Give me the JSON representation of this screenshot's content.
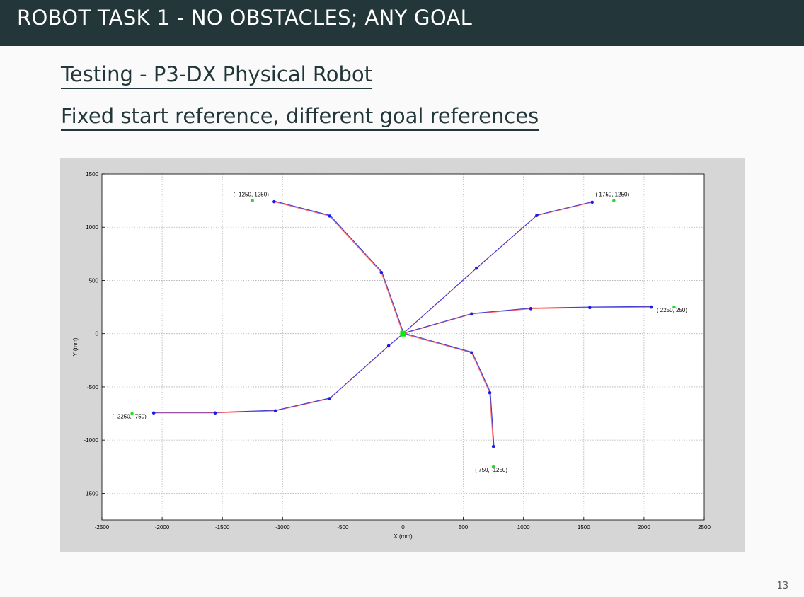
{
  "header": {
    "title": "ROBOT TASK 1 - NO OBSTACLES; ANY GOAL"
  },
  "content": {
    "heading1": "Testing - P3-DX Physical Robot",
    "heading2": "Fixed start reference, different goal references"
  },
  "footer": {
    "page_number": "13"
  },
  "colors": {
    "path_blue": "#3b3bd6",
    "path_red": "#ff6a6a",
    "waypoint": "#1a1aee",
    "goal": "#22dd22",
    "start": "#00ee00",
    "grid": "#b0b0b0",
    "plot_bg": "#ffffff",
    "figure_bg": "#d6d6d6"
  },
  "chart_data": {
    "type": "line",
    "title": "",
    "xlabel": "X (mm)",
    "ylabel": "Y (mm)",
    "xlim": [
      -2500,
      2500
    ],
    "ylim": [
      -1750,
      1500
    ],
    "xticks": [
      -2500,
      -2000,
      -1500,
      -1000,
      -500,
      0,
      500,
      1000,
      1500,
      2000,
      2500
    ],
    "yticks": [
      -1500,
      -1000,
      -500,
      0,
      500,
      1000,
      1500
    ],
    "grid": true,
    "start": [
      0,
      0
    ],
    "series": [
      {
        "goal_label": "( -1250, 1250)",
        "goal": [
          -1250,
          1250
        ],
        "points": [
          [
            0,
            0
          ],
          [
            -180,
            575
          ],
          [
            -610,
            1105
          ],
          [
            -1070,
            1240
          ]
        ]
      },
      {
        "goal_label": "( 1750, 1250)",
        "goal": [
          1750,
          1250
        ],
        "points": [
          [
            0,
            0
          ],
          [
            610,
            615
          ],
          [
            1110,
            1110
          ],
          [
            1570,
            1235
          ]
        ]
      },
      {
        "goal_label": "( 2250, 250)",
        "goal": [
          2250,
          250
        ],
        "points": [
          [
            0,
            0
          ],
          [
            570,
            185
          ],
          [
            1060,
            235
          ],
          [
            1550,
            245
          ],
          [
            2060,
            250
          ]
        ]
      },
      {
        "goal_label": "( 750, -1250)",
        "goal": [
          750,
          -1250
        ],
        "points": [
          [
            0,
            0
          ],
          [
            570,
            -180
          ],
          [
            720,
            -555
          ],
          [
            750,
            -1060
          ]
        ]
      },
      {
        "goal_label": "( -2250, -750)",
        "goal": [
          -2250,
          -750
        ],
        "points": [
          [
            0,
            0
          ],
          [
            -120,
            -115
          ],
          [
            -610,
            -610
          ],
          [
            -1060,
            -725
          ],
          [
            -1560,
            -745
          ],
          [
            -2070,
            -745
          ]
        ]
      }
    ]
  }
}
